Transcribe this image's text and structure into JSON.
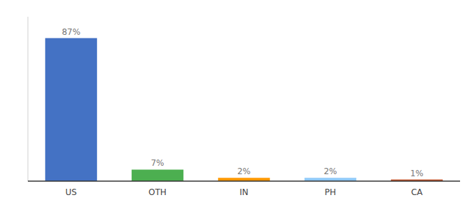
{
  "chart_data": {
    "type": "bar",
    "categories": [
      "US",
      "OTH",
      "IN",
      "PH",
      "CA"
    ],
    "values": [
      87,
      7,
      2,
      2,
      1
    ],
    "value_labels": [
      "87%",
      "7%",
      "2%",
      "2%",
      "1%"
    ],
    "colors": [
      "#4472c4",
      "#4caf50",
      "#ff9800",
      "#90caf9",
      "#c0522a"
    ],
    "ylim": [
      0,
      100
    ],
    "data_labels": true,
    "tick_labels": "x",
    "grid": false
  }
}
